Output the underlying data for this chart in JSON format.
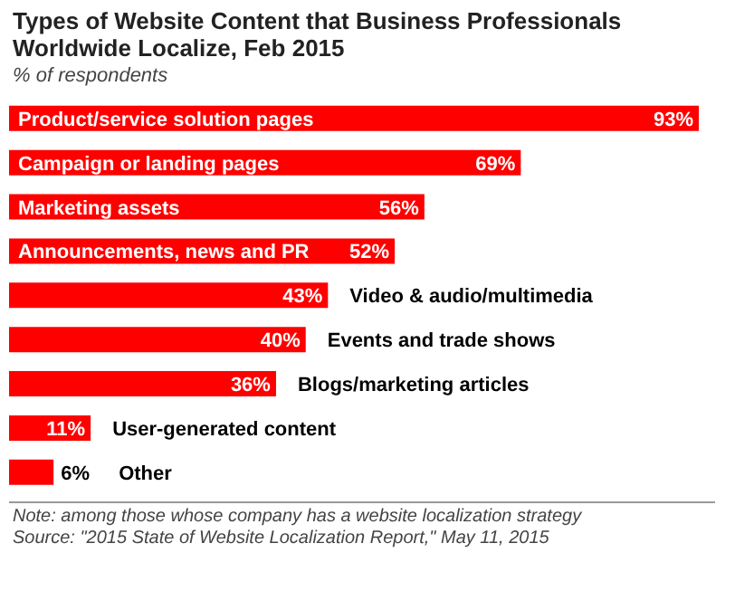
{
  "chart_data": {
    "type": "bar",
    "orientation": "horizontal",
    "title": "Types of Website Content that Business Professionals Worldwide Localize, Feb 2015",
    "subtitle": "% of respondents",
    "categories": [
      "Product/service solution pages",
      "Campaign or landing pages",
      "Marketing assets",
      "Announcements, news and PR",
      "Video & audio/multimedia",
      "Events and trade shows",
      "Blogs/marketing articles",
      "User-generated content",
      "Other"
    ],
    "values": [
      93,
      69,
      56,
      52,
      43,
      40,
      36,
      11,
      6
    ],
    "color": "#ff0000",
    "value_labels": [
      "93%",
      "69%",
      "56%",
      "52%",
      "43%",
      "40%",
      "36%",
      "11%",
      "6%"
    ],
    "annotations": [
      "Note: among those whose company has a website localization strategy",
      "Source: \"2015 State of Website Localization Report,\" May 11, 2015"
    ]
  }
}
